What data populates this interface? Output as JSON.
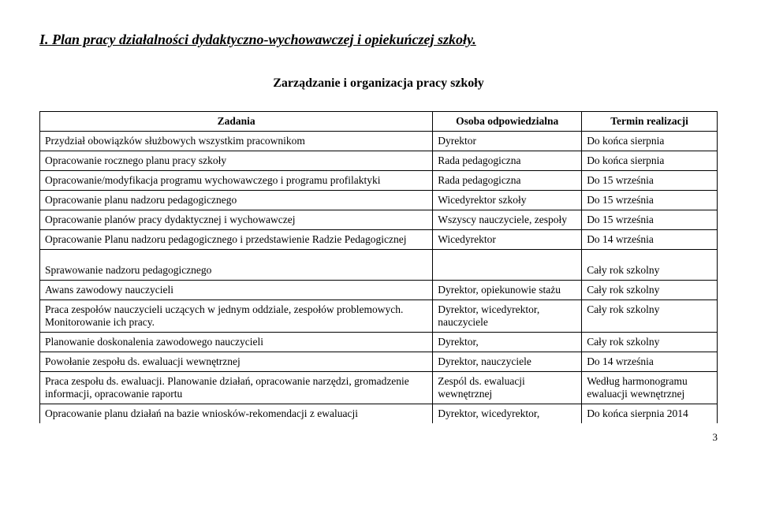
{
  "heading": "I. Plan pracy działalności dydaktyczno-wychowawczej i opiekuńczej szkoły.",
  "subheading": "Zarządzanie i organizacja pracy szkoły",
  "columns": {
    "zadania": "Zadania",
    "osoba": "Osoba odpowiedzialna",
    "termin": "Termin realizacji"
  },
  "rows": [
    {
      "zadania": "Przydział obowiązków służbowych wszystkim pracownikom",
      "osoba": "Dyrektor",
      "termin": "Do końca sierpnia"
    },
    {
      "zadania": "Opracowanie rocznego planu pracy szkoły",
      "osoba": "Rada pedagogiczna",
      "termin": "Do końca sierpnia"
    },
    {
      "zadania": "Opracowanie/modyfikacja programu wychowawczego i programu profilaktyki",
      "osoba": "Rada pedagogiczna",
      "termin": "Do 15 września"
    },
    {
      "zadania": "Opracowanie planu nadzoru pedagogicznego",
      "osoba": "Wicedyrektor szkoły",
      "termin": "Do 15 września"
    },
    {
      "zadania": "Opracowanie planów pracy dydaktycznej i wychowawczej",
      "osoba": "Wszyscy nauczyciele, zespoły",
      "termin": "Do 15 września"
    },
    {
      "zadania": "Opracowanie Planu nadzoru pedagogicznego i przedstawienie Radzie Pedagogicznej",
      "osoba": "Wicedyrektor",
      "termin": "Do 14 września"
    }
  ],
  "subrow": {
    "zadania": " Sprawowanie nadzoru pedagogicznego",
    "osoba": "",
    "termin": "Cały rok szkolny"
  },
  "rows2": [
    {
      "zadania": "Awans zawodowy nauczycieli",
      "osoba": "Dyrektor, opiekunowie stażu",
      "termin": "Cały rok szkolny"
    },
    {
      "zadania": "Praca zespołów nauczycieli uczących w jednym oddziale, zespołów problemowych. Monitorowanie ich pracy.",
      "osoba": "Dyrektor, wicedyrektor, nauczyciele",
      "termin": "Cały rok szkolny"
    },
    {
      "zadania": "Planowanie doskonalenia zawodowego nauczycieli",
      "osoba": " Dyrektor,",
      "termin": "Cały rok szkolny"
    },
    {
      "zadania": "Powołanie zespołu ds. ewaluacji wewnętrznej",
      "osoba": "Dyrektor, nauczyciele",
      "termin": "Do 14 września"
    },
    {
      "zadania": "Praca zespołu ds. ewaluacji. Planowanie działań, opracowanie narzędzi, gromadzenie informacji, opracowanie raportu",
      "osoba": "Zespól ds. ewaluacji wewnętrznej",
      "termin": "Według harmonogramu ewaluacji wewnętrznej"
    },
    {
      "zadania": "Opracowanie planu działań na bazie wniosków-rekomendacji z ewaluacji",
      "osoba": "Dyrektor, wicedyrektor,",
      "termin": "Do końca sierpnia 2014"
    }
  ],
  "page_number": "3"
}
